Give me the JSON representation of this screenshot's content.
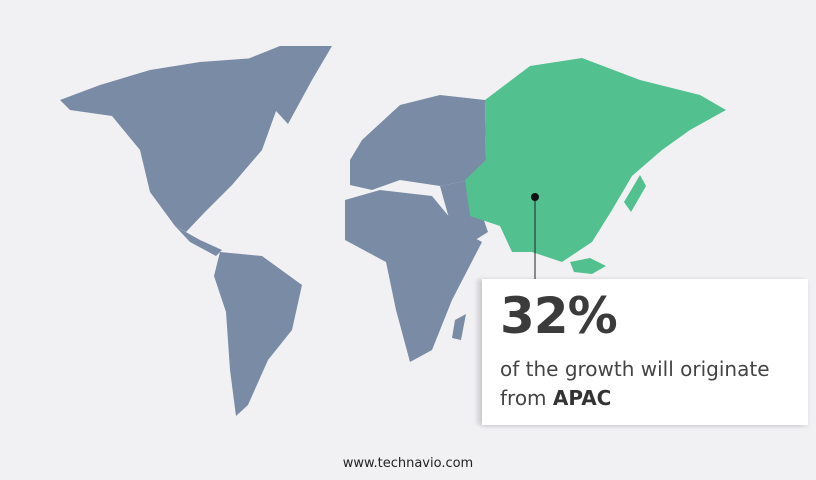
{
  "colors": {
    "background": "#f1f1f4",
    "other_regions": "#7a8ba6",
    "highlight_region": "#52c08f"
  },
  "map": {
    "highlighted_region": "APAC"
  },
  "callout": {
    "percent": "32%",
    "text": "of the growth will originate from",
    "region": "APAC"
  },
  "footer": {
    "url": "www.technavio.com"
  }
}
